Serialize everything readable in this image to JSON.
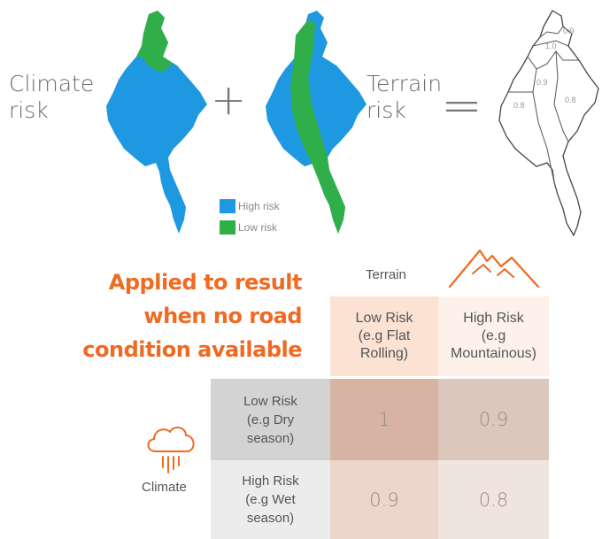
{
  "formula": {
    "climate_label_line1": "Climate",
    "climate_label_line2": "risk",
    "plus": "+",
    "terrain_label_line1": "Terrain",
    "terrain_label_line2": "risk",
    "equals": "="
  },
  "legend": {
    "high": "High risk",
    "low": "Low risk",
    "high_color": "#1e98e0",
    "low_color": "#2fae4a"
  },
  "result_map_values": [
    "0.9",
    "1.0",
    "0.9",
    "0.8",
    "0.8"
  ],
  "headline": {
    "line1": "Applied to result",
    "line2": "when no road",
    "line3": "condition available"
  },
  "matrix": {
    "terrain_label": "Terrain",
    "climate_label": "Climate",
    "terrain_icon": "mountain-icon",
    "climate_icon": "rain-cloud-icon",
    "col_headers": [
      {
        "line1": "Low Risk",
        "line2": "(e.g Flat",
        "line3": "Rolling)"
      },
      {
        "line1": "High Risk",
        "line2": "(e.g",
        "line3": "Mountainous)"
      }
    ],
    "row_headers": [
      {
        "line1": "Low Risk",
        "line2": "(e.g Dry",
        "line3": "season)"
      },
      {
        "line1": "High Risk",
        "line2": "(e.g Wet",
        "line3": "season)"
      }
    ],
    "values": [
      [
        "1",
        "0.9"
      ],
      [
        "0.9",
        "0.8"
      ]
    ]
  }
}
